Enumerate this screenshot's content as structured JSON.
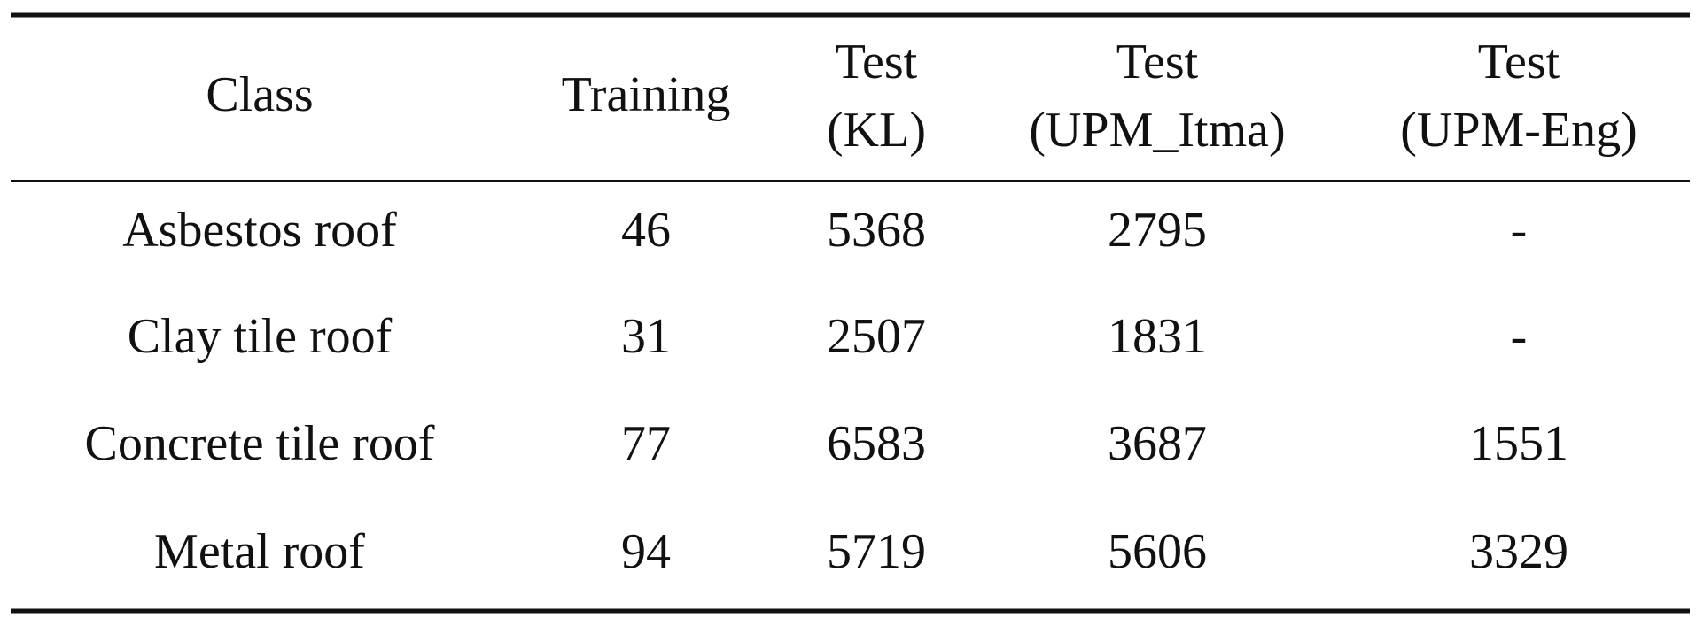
{
  "table": {
    "header": [
      [
        "Class"
      ],
      [
        "Training"
      ],
      [
        "Test",
        "(KL)"
      ],
      [
        "Test",
        "(UPM_Itma)"
      ],
      [
        "Test",
        "(UPM-Eng)"
      ]
    ],
    "rows": [
      [
        "Asbestos roof",
        46,
        5368,
        2795,
        "-"
      ],
      [
        "Clay tile roof",
        31,
        2507,
        1831,
        "-"
      ],
      [
        "Concrete tile roof",
        77,
        6583,
        3687,
        1551
      ],
      [
        "Metal roof",
        94,
        5719,
        5606,
        3329
      ]
    ]
  }
}
